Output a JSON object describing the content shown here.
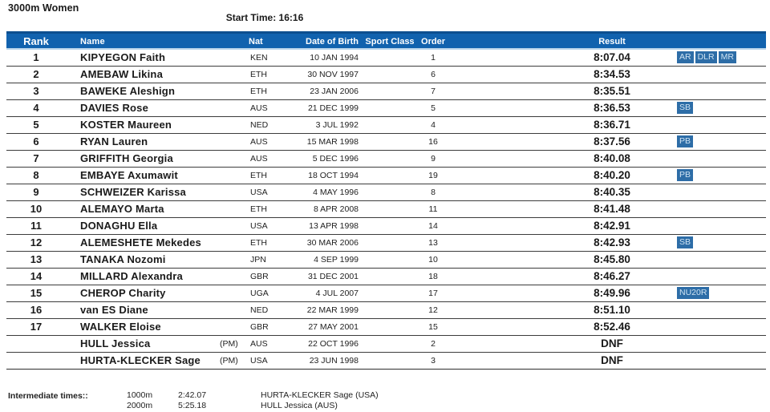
{
  "page": {
    "title": "3000m Women",
    "start_time_label": "Start Time:  16:16"
  },
  "colors": {
    "accent": "#1162ae",
    "accent_dark": "#0d4f8f",
    "accent_light": "#b9d4ea",
    "badge_bg": "#2d6da7",
    "badge_text": "#cfe3f3"
  },
  "table": {
    "headers": {
      "rank": "Rank",
      "name": "Name",
      "nat": "Nat",
      "dob": "Date of Birth",
      "sport_class": "Sport Class",
      "order": "Order",
      "result": "Result"
    }
  },
  "results": {
    "rows": [
      {
        "rank": "1",
        "name": "KIPYEGON Faith",
        "pm": "",
        "nat": "KEN",
        "dob": "10 JAN 1994",
        "order": "1",
        "result": "8:07.04",
        "badges": [
          "AR",
          "DLR",
          "MR"
        ]
      },
      {
        "rank": "2",
        "name": "AMEBAW Likina",
        "pm": "",
        "nat": "ETH",
        "dob": "30 NOV 1997",
        "order": "6",
        "result": "8:34.53",
        "badges": []
      },
      {
        "rank": "3",
        "name": "BAWEKE Aleshign",
        "pm": "",
        "nat": "ETH",
        "dob": "23 JAN 2006",
        "order": "7",
        "result": "8:35.51",
        "badges": []
      },
      {
        "rank": "4",
        "name": "DAVIES Rose",
        "pm": "",
        "nat": "AUS",
        "dob": "21 DEC 1999",
        "order": "5",
        "result": "8:36.53",
        "badges": [
          "SB"
        ]
      },
      {
        "rank": "5",
        "name": "KOSTER Maureen",
        "pm": "",
        "nat": "NED",
        "dob": "3 JUL 1992",
        "order": "4",
        "result": "8:36.71",
        "badges": []
      },
      {
        "rank": "6",
        "name": "RYAN Lauren",
        "pm": "",
        "nat": "AUS",
        "dob": "15 MAR 1998",
        "order": "16",
        "result": "8:37.56",
        "badges": [
          "PB"
        ]
      },
      {
        "rank": "7",
        "name": "GRIFFITH Georgia",
        "pm": "",
        "nat": "AUS",
        "dob": "5 DEC 1996",
        "order": "9",
        "result": "8:40.08",
        "badges": []
      },
      {
        "rank": "8",
        "name": "EMBAYE Axumawit",
        "pm": "",
        "nat": "ETH",
        "dob": "18 OCT 1994",
        "order": "19",
        "result": "8:40.20",
        "badges": [
          "PB"
        ]
      },
      {
        "rank": "9",
        "name": "SCHWEIZER Karissa",
        "pm": "",
        "nat": "USA",
        "dob": "4 MAY 1996",
        "order": "8",
        "result": "8:40.35",
        "badges": []
      },
      {
        "rank": "10",
        "name": "ALEMAYO Marta",
        "pm": "",
        "nat": "ETH",
        "dob": "8 APR 2008",
        "order": "11",
        "result": "8:41.48",
        "badges": []
      },
      {
        "rank": "11",
        "name": "DONAGHU Ella",
        "pm": "",
        "nat": "USA",
        "dob": "13 APR 1998",
        "order": "14",
        "result": "8:42.91",
        "badges": []
      },
      {
        "rank": "12",
        "name": "ALEMESHETE Mekedes",
        "pm": "",
        "nat": "ETH",
        "dob": "30 MAR 2006",
        "order": "13",
        "result": "8:42.93",
        "badges": [
          "SB"
        ]
      },
      {
        "rank": "13",
        "name": "TANAKA Nozomi",
        "pm": "",
        "nat": "JPN",
        "dob": "4 SEP 1999",
        "order": "10",
        "result": "8:45.80",
        "badges": []
      },
      {
        "rank": "14",
        "name": "MILLARD Alexandra",
        "pm": "",
        "nat": "GBR",
        "dob": "31 DEC 2001",
        "order": "18",
        "result": "8:46.27",
        "badges": []
      },
      {
        "rank": "15",
        "name": "CHEROP Charity",
        "pm": "",
        "nat": "UGA",
        "dob": "4 JUL 2007",
        "order": "17",
        "result": "8:49.96",
        "badges": [
          "NU20R"
        ]
      },
      {
        "rank": "16",
        "name": "van ES Diane",
        "pm": "",
        "nat": "NED",
        "dob": "22 MAR 1999",
        "order": "12",
        "result": "8:51.10",
        "badges": []
      },
      {
        "rank": "17",
        "name": "WALKER Eloise",
        "pm": "",
        "nat": "GBR",
        "dob": "27 MAY 2001",
        "order": "15",
        "result": "8:52.46",
        "badges": []
      },
      {
        "rank": "",
        "name": "HULL Jessica",
        "pm": "(PM)",
        "nat": "AUS",
        "dob": "22 OCT 1996",
        "order": "2",
        "result": "DNF",
        "badges": []
      },
      {
        "rank": "",
        "name": "HURTA-KLECKER Sage",
        "pm": "(PM)",
        "nat": "USA",
        "dob": "23 JUN 1998",
        "order": "3",
        "result": "DNF",
        "badges": []
      }
    ]
  },
  "footer": {
    "label": "Intermediate times::",
    "splits": [
      {
        "distance": "1000m",
        "time": "2:42.07",
        "athlete": "HURTA-KLECKER Sage (USA)"
      },
      {
        "distance": "2000m",
        "time": "5:25.18",
        "athlete": "HULL Jessica (AUS)"
      }
    ]
  }
}
